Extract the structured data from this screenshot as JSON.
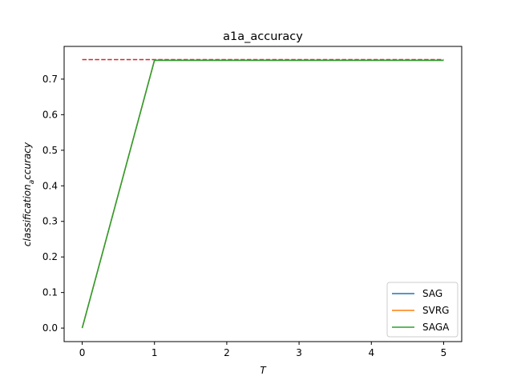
{
  "chart_data": {
    "type": "line",
    "title": "a1a_accuracy",
    "xlabel": "T",
    "ylabel_main": "classification",
    "ylabel_sub": "a",
    "ylabel_tail": "ccuracy",
    "xlim": [
      -0.25,
      5.25
    ],
    "ylim": [
      -0.038,
      0.792
    ],
    "xticks": [
      0,
      1,
      2,
      3,
      4,
      5
    ],
    "yticks": [
      0.0,
      0.1,
      0.2,
      0.3,
      0.4,
      0.5,
      0.6,
      0.7
    ],
    "ytick_labels": [
      "0.0",
      "0.1",
      "0.2",
      "0.3",
      "0.4",
      "0.5",
      "0.6",
      "0.7"
    ],
    "grid": false,
    "legend_position": "lower-right",
    "x": [
      0,
      1,
      2,
      3,
      4,
      5
    ],
    "series": [
      {
        "name": "SAG",
        "color": "#1f77b4",
        "values": [
          0.0,
          0.753,
          0.753,
          0.753,
          0.753,
          0.753
        ]
      },
      {
        "name": "SVRG",
        "color": "#ff7f0e",
        "values": [
          0.0,
          0.753,
          0.753,
          0.753,
          0.753,
          0.753
        ]
      },
      {
        "name": "SAGA",
        "color": "#2ca02c",
        "values": [
          0.0,
          0.753,
          0.753,
          0.753,
          0.753,
          0.753
        ]
      }
    ],
    "reference_line": {
      "color": "#d62728",
      "style": "dashed",
      "y": 0.755,
      "x_range": [
        0,
        5
      ]
    }
  }
}
